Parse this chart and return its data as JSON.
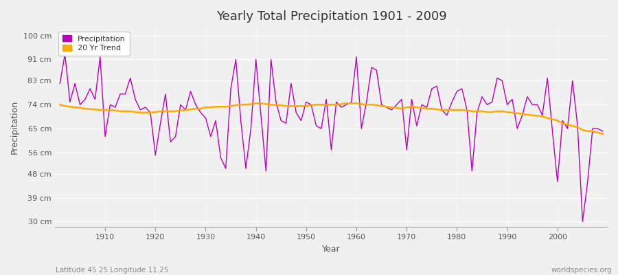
{
  "title": "Yearly Total Precipitation 1901 - 2009",
  "xlabel": "Year",
  "ylabel": "Precipitation",
  "subtitle_left": "Latitude 45.25 Longitude 11.25",
  "subtitle_right": "worldspecies.org",
  "bg_color": "#f0f0f0",
  "plot_bg_color": "#f0f0f0",
  "line_color": "#bb00bb",
  "trend_color": "#ffaa00",
  "years": [
    1901,
    1902,
    1903,
    1904,
    1905,
    1906,
    1907,
    1908,
    1909,
    1910,
    1911,
    1912,
    1913,
    1914,
    1915,
    1916,
    1917,
    1918,
    1919,
    1920,
    1921,
    1922,
    1923,
    1924,
    1925,
    1926,
    1927,
    1928,
    1929,
    1930,
    1931,
    1932,
    1933,
    1934,
    1935,
    1936,
    1937,
    1938,
    1939,
    1940,
    1941,
    1942,
    1943,
    1944,
    1945,
    1946,
    1947,
    1948,
    1949,
    1950,
    1951,
    1952,
    1953,
    1954,
    1955,
    1956,
    1957,
    1958,
    1959,
    1960,
    1961,
    1962,
    1963,
    1964,
    1965,
    1966,
    1967,
    1968,
    1969,
    1970,
    1971,
    1972,
    1973,
    1974,
    1975,
    1976,
    1977,
    1978,
    1979,
    1980,
    1981,
    1982,
    1983,
    1984,
    1985,
    1986,
    1987,
    1988,
    1989,
    1990,
    1991,
    1992,
    1993,
    1994,
    1995,
    1996,
    1997,
    1998,
    1999,
    2000,
    2001,
    2002,
    2003,
    2004,
    2005,
    2006,
    2007,
    2008,
    2009
  ],
  "precip": [
    82,
    93,
    75,
    82,
    74,
    76,
    80,
    76,
    92,
    62,
    74,
    73,
    78,
    78,
    84,
    76,
    72,
    73,
    71,
    55,
    67,
    78,
    60,
    62,
    74,
    72,
    79,
    74,
    71,
    69,
    62,
    68,
    54,
    50,
    80,
    91,
    68,
    50,
    65,
    91,
    70,
    49,
    91,
    75,
    68,
    67,
    82,
    71,
    68,
    75,
    74,
    66,
    65,
    76,
    57,
    75,
    73,
    74,
    75,
    92,
    65,
    75,
    88,
    87,
    74,
    73,
    72,
    74,
    76,
    57,
    76,
    66,
    74,
    73,
    80,
    81,
    72,
    70,
    75,
    79,
    80,
    72,
    49,
    71,
    77,
    74,
    75,
    84,
    83,
    74,
    76,
    65,
    70,
    77,
    74,
    74,
    70,
    84,
    64,
    45,
    68,
    65,
    83,
    66,
    30,
    45,
    65,
    65,
    64
  ],
  "trend": [
    74,
    73.5,
    73.2,
    73.0,
    72.8,
    72.5,
    72.3,
    72.2,
    72.0,
    72.0,
    72.0,
    71.8,
    71.5,
    71.5,
    71.5,
    71.2,
    71.0,
    71.0,
    71.0,
    71.2,
    71.5,
    71.5,
    71.5,
    71.5,
    71.8,
    72.0,
    72.2,
    72.5,
    72.5,
    73.0,
    73.0,
    73.2,
    73.2,
    73.2,
    73.5,
    73.8,
    74.0,
    74.0,
    74.2,
    74.5,
    74.5,
    74.2,
    74.0,
    73.8,
    73.8,
    73.5,
    73.5,
    73.5,
    73.5,
    73.5,
    73.8,
    74.0,
    74.0,
    74.0,
    74.0,
    74.0,
    74.2,
    74.5,
    74.5,
    74.5,
    74.2,
    74.0,
    74.0,
    73.8,
    73.5,
    73.2,
    73.0,
    72.8,
    72.5,
    73.0,
    73.2,
    73.0,
    72.8,
    72.5,
    72.5,
    72.2,
    72.0,
    72.0,
    72.0,
    72.0,
    72.0,
    71.8,
    71.5,
    71.5,
    71.5,
    71.2,
    71.2,
    71.5,
    71.5,
    71.2,
    71.0,
    70.8,
    70.5,
    70.2,
    70.0,
    69.8,
    69.5,
    69.0,
    68.5,
    68.0,
    67.0,
    66.5,
    66.0,
    65.5,
    64.5,
    64.0,
    64.0,
    63.5,
    63.0
  ],
  "yticks": [
    30,
    39,
    48,
    56,
    65,
    74,
    83,
    91,
    100
  ],
  "ytick_labels": [
    "30 cm",
    "39 cm",
    "48 cm",
    "56 cm",
    "65 cm",
    "74 cm",
    "83 cm",
    "91 cm",
    "100 cm"
  ],
  "xticks": [
    1910,
    1920,
    1930,
    1940,
    1950,
    1960,
    1970,
    1980,
    1990,
    2000
  ],
  "xlim": [
    1900,
    2010
  ],
  "ylim": [
    28,
    103
  ]
}
